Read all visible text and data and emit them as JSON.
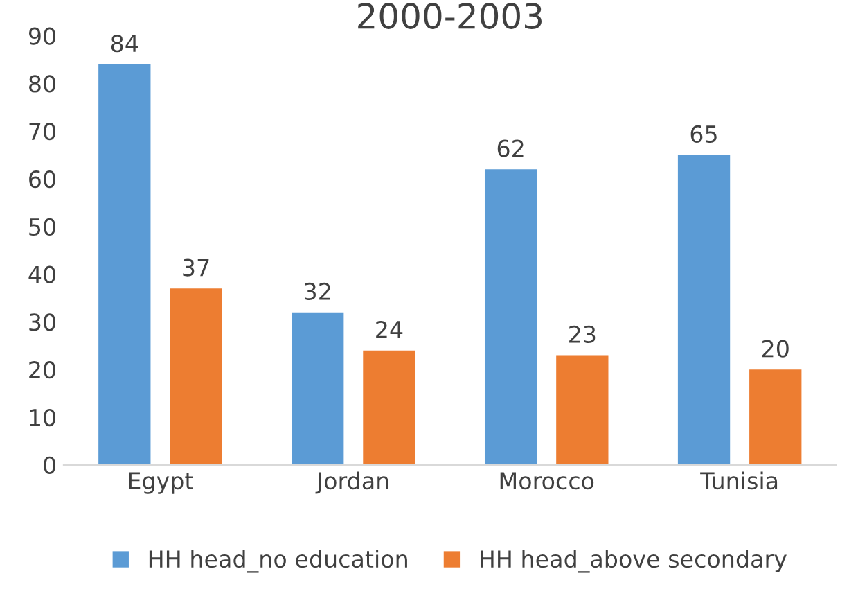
{
  "chart_data": {
    "type": "bar",
    "title": "2000-2003",
    "categories": [
      "Egypt",
      "Jordan",
      "Morocco",
      "Tunisia"
    ],
    "series": [
      {
        "name": "HH head_no education",
        "color": "#5b9bd5",
        "values": [
          84,
          32,
          62,
          65
        ]
      },
      {
        "name": "HH head_above secondary",
        "color": "#ed7d31",
        "values": [
          37,
          24,
          23,
          20
        ]
      }
    ],
    "ylim": [
      0,
      90
    ],
    "yticks": [
      0,
      10,
      20,
      30,
      40,
      50,
      60,
      70,
      80,
      90
    ],
    "data_labels": true,
    "legend": "bottom",
    "grid": false
  }
}
